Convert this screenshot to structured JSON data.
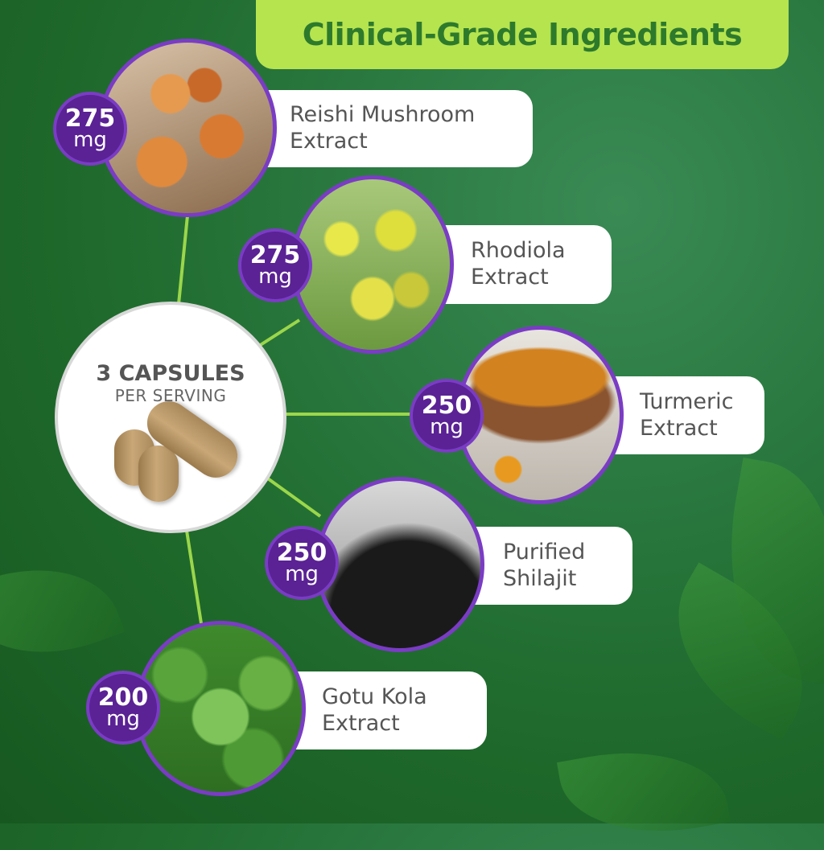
{
  "title": "Clinical-Grade Ingredients",
  "serving": {
    "count_label": "3 CAPSULES",
    "per_label": "PER SERVING"
  },
  "colors": {
    "banner": "#b6e44f",
    "title_text": "#2e7a2c",
    "badge": "#5a2294",
    "ring": "#7a3cc4",
    "connector": "#9bd64b"
  },
  "ingredients": [
    {
      "amount": "275",
      "unit": "mg",
      "name_line1": "Reishi Mushroom",
      "name_line2": "Extract",
      "image": "reishi-mushroom"
    },
    {
      "amount": "275",
      "unit": "mg",
      "name_line1": "Rhodiola",
      "name_line2": "Extract",
      "image": "rhodiola-flowers"
    },
    {
      "amount": "250",
      "unit": "mg",
      "name_line1": "Turmeric",
      "name_line2": "Extract",
      "image": "turmeric-powder"
    },
    {
      "amount": "250",
      "unit": "mg",
      "name_line1": "Purified",
      "name_line2": "Shilajit",
      "image": "shilajit-powder"
    },
    {
      "amount": "200",
      "unit": "mg",
      "name_line1": "Gotu Kola",
      "name_line2": "Extract",
      "image": "gotu-kola-leaves"
    }
  ]
}
